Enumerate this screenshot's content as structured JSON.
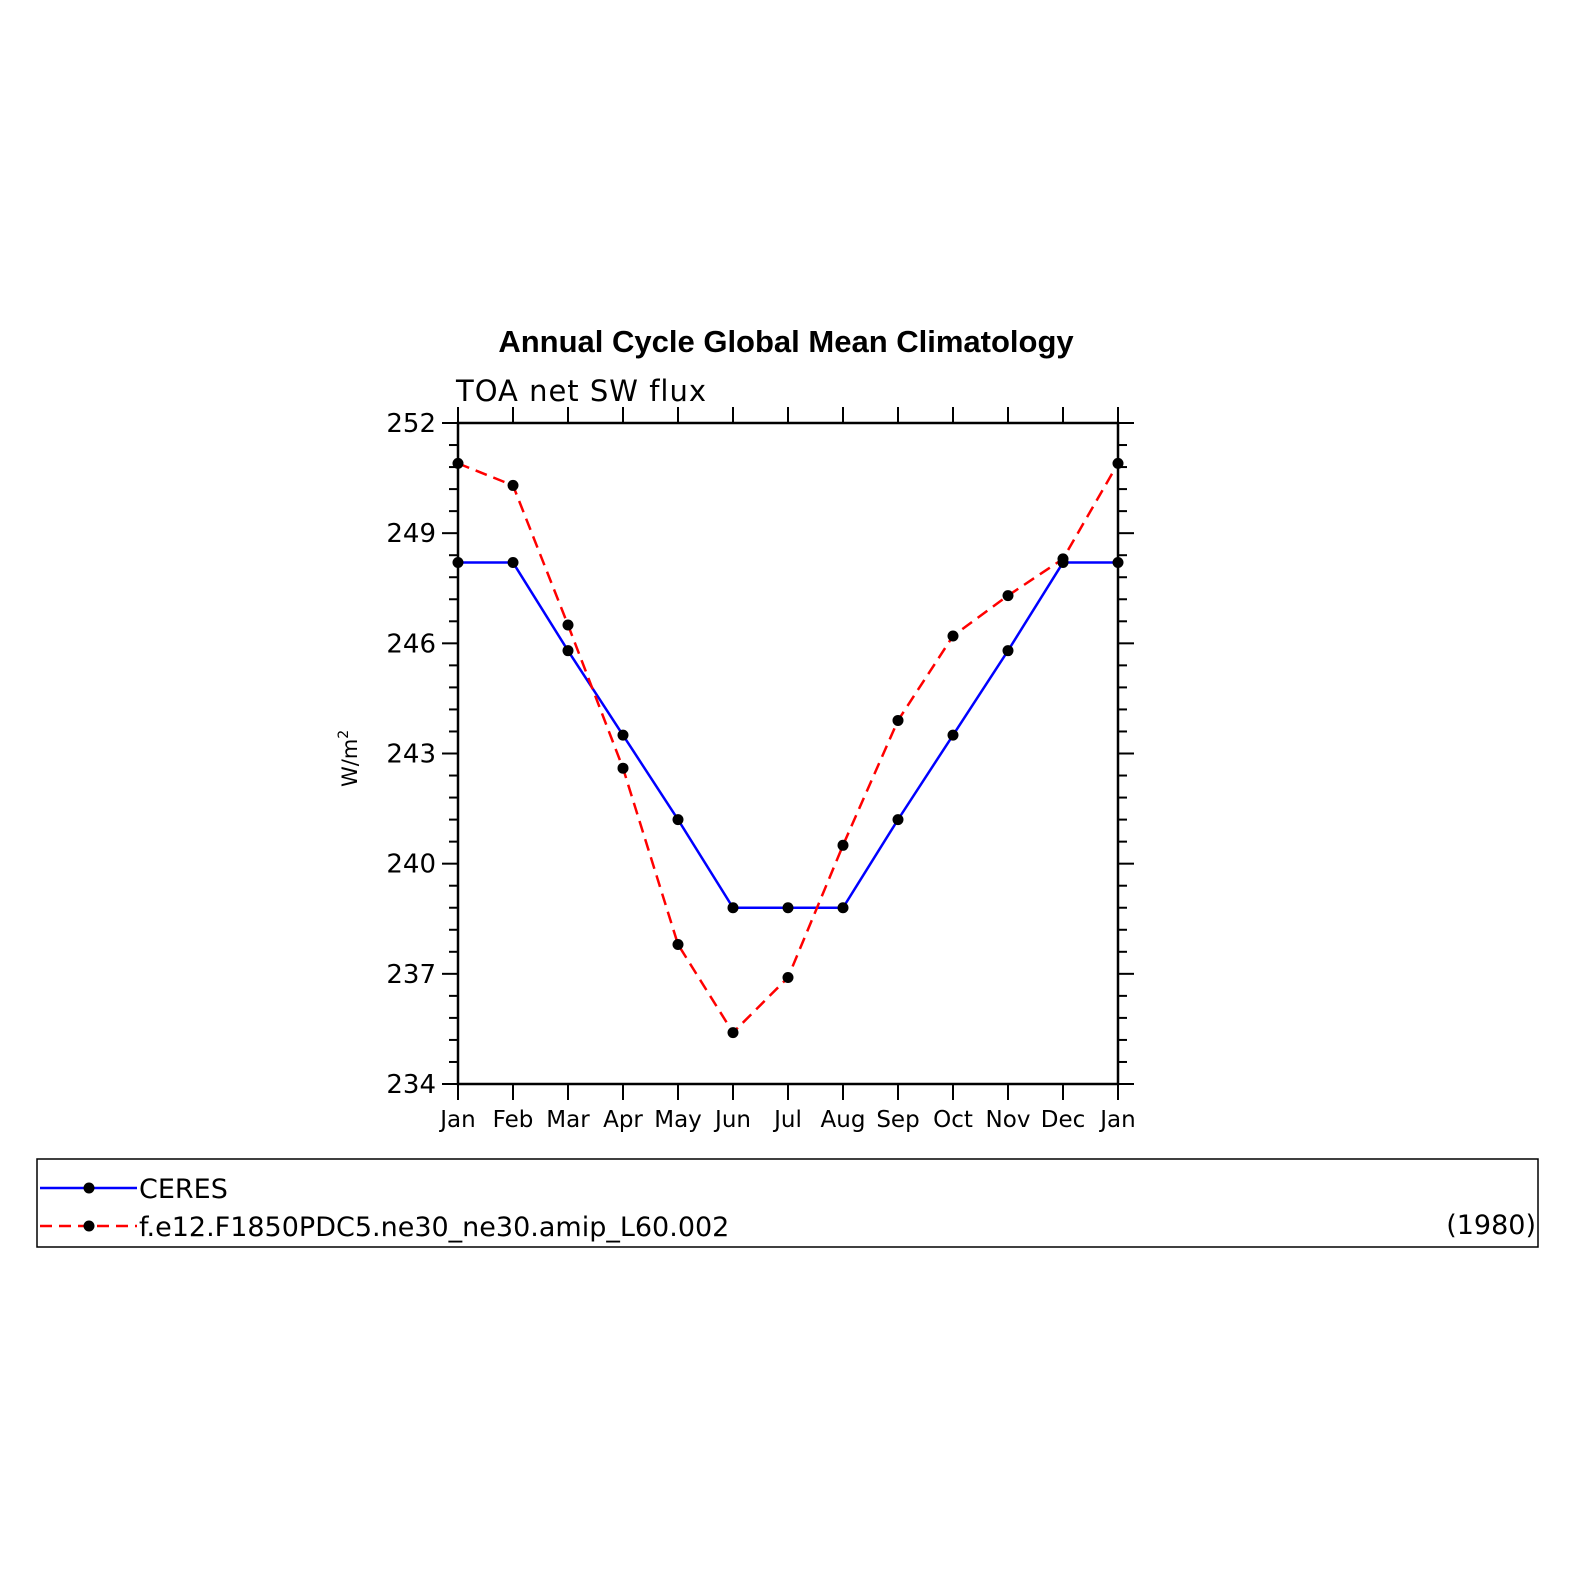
{
  "chart_data": {
    "type": "line",
    "title": "Annual Cycle Global Mean Climatology",
    "subtitle": "TOA net SW flux",
    "ylabel": "W/m",
    "ylabel_superscript": "2",
    "ylim": [
      234,
      252
    ],
    "yticks": [
      "234",
      "237",
      "240",
      "243",
      "246",
      "249",
      "252"
    ],
    "categories": [
      "Jan",
      "Feb",
      "Mar",
      "Apr",
      "May",
      "Jun",
      "Jul",
      "Aug",
      "Sep",
      "Oct",
      "Nov",
      "Dec",
      "Jan"
    ],
    "grid": false,
    "legend_position": "bottom",
    "series": [
      {
        "name": "CERES",
        "color": "#0000ff",
        "style": "solid",
        "values": [
          248.2,
          248.2,
          245.8,
          243.5,
          241.2,
          238.8,
          238.8,
          238.8,
          241.2,
          243.5,
          245.8,
          248.2,
          248.2
        ]
      },
      {
        "name": "f.e12.F1850PDC5.ne30_ne30.amip_L60.002",
        "color": "#ff0000",
        "style": "dashed",
        "values": [
          250.9,
          250.3,
          246.5,
          242.6,
          237.8,
          235.4,
          236.9,
          240.5,
          243.9,
          246.2,
          247.3,
          248.3,
          250.9
        ]
      }
    ],
    "legend_note": "(1980)"
  }
}
